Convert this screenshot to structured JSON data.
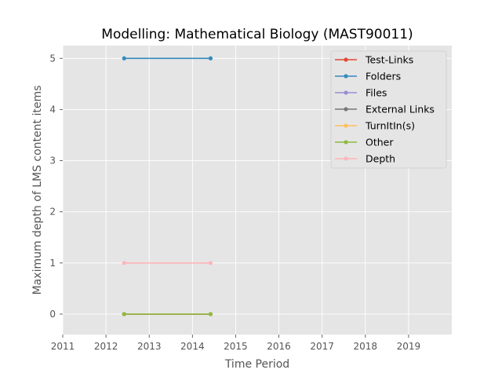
{
  "chart_data": {
    "type": "line",
    "title": "Modelling: Mathematical Biology (MAST90011)",
    "xlabel": "Time Period",
    "ylabel": "Maximum depth of LMS content items",
    "xlim": [
      2011,
      2020
    ],
    "ylim": [
      -0.4,
      5.25
    ],
    "x_ticks": [
      "2011",
      "2012",
      "2013",
      "2014",
      "2015",
      "2016",
      "2017",
      "2018",
      "2019"
    ],
    "y_ticks": [
      "0",
      "1",
      "2",
      "3",
      "4",
      "5"
    ],
    "grid": true,
    "legend_position": "top-right",
    "x": [
      2012.42,
      2014.42
    ],
    "series": [
      {
        "name": "Test-Links",
        "color": "#E24A33",
        "values": [
          0,
          0
        ]
      },
      {
        "name": "Folders",
        "color": "#348ABD",
        "values": [
          5,
          5
        ]
      },
      {
        "name": "Files",
        "color": "#988ED5",
        "values": [
          0,
          0
        ]
      },
      {
        "name": "External Links",
        "color": "#777777",
        "values": [
          0,
          0
        ]
      },
      {
        "name": "TurnItIn(s)",
        "color": "#FBC15E",
        "values": [
          0,
          0
        ]
      },
      {
        "name": "Other",
        "color": "#8EBA42",
        "values": [
          0,
          0
        ]
      },
      {
        "name": "Depth",
        "color": "#FFB5B8",
        "values": [
          1,
          1
        ]
      }
    ]
  }
}
